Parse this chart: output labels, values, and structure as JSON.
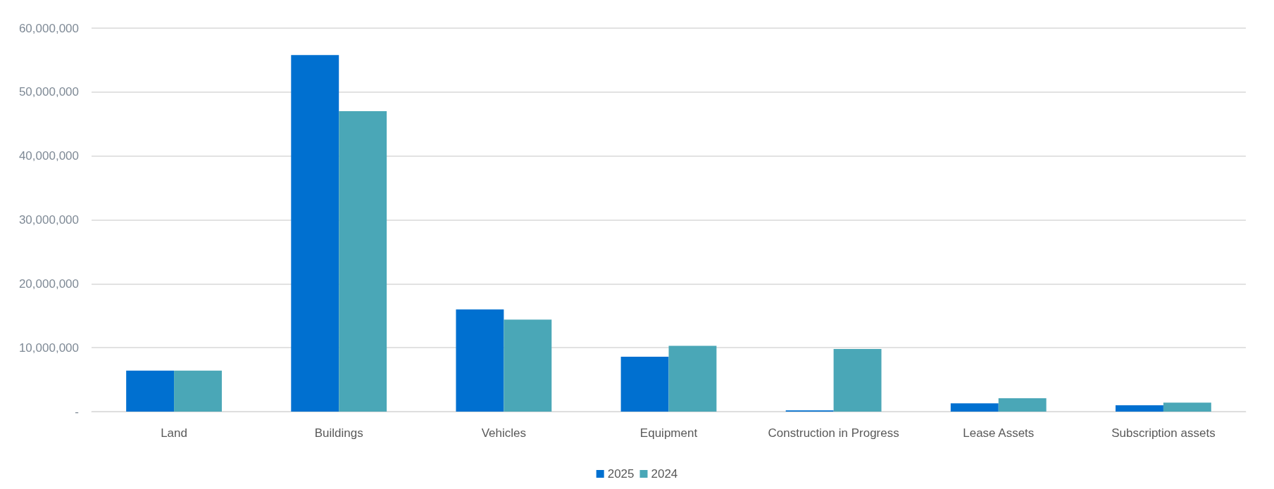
{
  "chart_data": {
    "type": "bar",
    "categories": [
      "Land",
      "Buildings",
      "Vehicles",
      "Equipment",
      "Construction in Progress",
      "Lease Assets",
      "Subscription assets"
    ],
    "series": [
      {
        "name": "2025",
        "color": "#0070d0",
        "values": [
          6400000,
          55800000,
          16000000,
          8600000,
          200000,
          1300000,
          1000000
        ]
      },
      {
        "name": "2024",
        "color": "#4aa7b7",
        "values": [
          6400000,
          47000000,
          14400000,
          10300000,
          9800000,
          2100000,
          1400000
        ]
      }
    ],
    "ylim": [
      0,
      60000000
    ],
    "yticks": [
      {
        "value": 0,
        "label": "-"
      },
      {
        "value": 10000000,
        "label": "10,000,000"
      },
      {
        "value": 20000000,
        "label": "20,000,000"
      },
      {
        "value": 30000000,
        "label": "30,000,000"
      },
      {
        "value": 40000000,
        "label": "40,000,000"
      },
      {
        "value": 50000000,
        "label": "50,000,000"
      },
      {
        "value": 60000000,
        "label": "60,000,000"
      }
    ],
    "grid": "y",
    "legend": "bottom"
  }
}
